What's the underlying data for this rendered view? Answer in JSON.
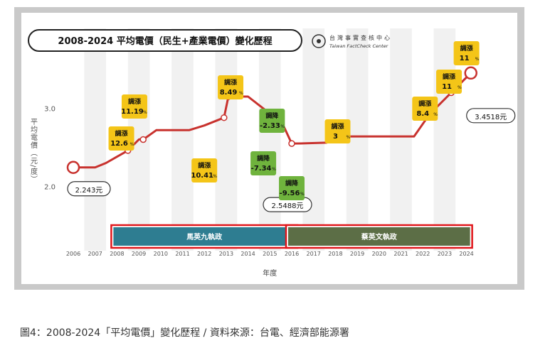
{
  "chart_data": {
    "type": "line",
    "title": "2008-2024 平均電價（民生+產業電價）變化歷程",
    "brand": {
      "name_zh": "台灣事實查核中心",
      "name_en": "Taiwan FactCheck Center"
    },
    "xlabel": "年度",
    "ylabel": "平均電價（元/度）",
    "ylim": [
      1.45,
      3.95
    ],
    "yticks": [
      "2.0",
      "3.0"
    ],
    "years": [
      "2006",
      "2007",
      "2008",
      "2009",
      "2010",
      "2011",
      "2012",
      "2013",
      "2014",
      "2015",
      "2016",
      "2017",
      "2018",
      "2019",
      "2020",
      "2021",
      "2022",
      "2023",
      "2024"
    ],
    "series": [
      {
        "values": [
          2.243,
          2.243,
          2.52,
          2.72,
          2.72,
          2.72,
          2.88,
          3.15,
          3.15,
          2.91,
          2.5488,
          2.57,
          2.64,
          2.64,
          2.64,
          2.64,
          2.92,
          3.2,
          3.4518
        ]
      }
    ],
    "markers": [
      {
        "x": 2006,
        "y": 2.243
      },
      {
        "x": 2008.5,
        "y": 2.46
      },
      {
        "x": 2009.2,
        "y": 2.6
      },
      {
        "x": 2013.1,
        "y": 3.15
      },
      {
        "x": 2012.9,
        "y": 2.88
      },
      {
        "x": 2015.1,
        "y": 2.91
      },
      {
        "x": 2015.45,
        "y": 2.88
      },
      {
        "x": 2016,
        "y": 2.5488
      },
      {
        "x": 2018.2,
        "y": 2.64
      },
      {
        "x": 2022.3,
        "y": 2.92
      },
      {
        "x": 2023.3,
        "y": 3.2
      },
      {
        "x": 2024.2,
        "y": 3.4518
      }
    ],
    "value_labels": [
      {
        "text": "2.243元"
      },
      {
        "text": "2.5488元"
      },
      {
        "text": "3.4518元"
      }
    ],
    "annotations": [
      {
        "word": "調漲",
        "value": "11.19",
        "unit": "%",
        "kind": "up"
      },
      {
        "word": "調漲",
        "value": "12.6",
        "unit": "%",
        "kind": "up"
      },
      {
        "word": "調漲",
        "value": "10.41",
        "unit": "%",
        "kind": "up"
      },
      {
        "word": "調漲",
        "value": "8.49",
        "unit": "%",
        "kind": "up"
      },
      {
        "word": "調降",
        "value": "-2.33",
        "unit": "%",
        "kind": "down"
      },
      {
        "word": "調降",
        "value": "-7.34",
        "unit": "%",
        "kind": "down"
      },
      {
        "word": "調降",
        "value": "-9.56",
        "unit": "%",
        "kind": "down"
      },
      {
        "word": "調漲",
        "value": "3",
        "unit": "%",
        "kind": "up"
      },
      {
        "word": "調漲",
        "value": "8.4",
        "unit": "%",
        "kind": "up"
      },
      {
        "word": "調漲",
        "value": "11",
        "unit": "%",
        "kind": "up"
      },
      {
        "word": "調漲",
        "value": "11",
        "unit": "%",
        "kind": "up"
      }
    ],
    "eras": [
      {
        "label": "馬英九執政",
        "from": 2008,
        "to": 2016,
        "color": "#2e7d91"
      },
      {
        "label": "蔡英文執政",
        "from": 2016,
        "to": 2024,
        "color": "#5c6e46"
      }
    ],
    "colors": {
      "line": "#c8322e",
      "up_tag": "#f4c518",
      "down_tag": "#6fb33d",
      "band": "#f1f1f1",
      "era_border": "#e0161b"
    },
    "grid": false,
    "legend": "none"
  },
  "caption": "圖4：2008-2024「平均電價」變化歷程 / 資料來源：台電、經濟部能源署"
}
